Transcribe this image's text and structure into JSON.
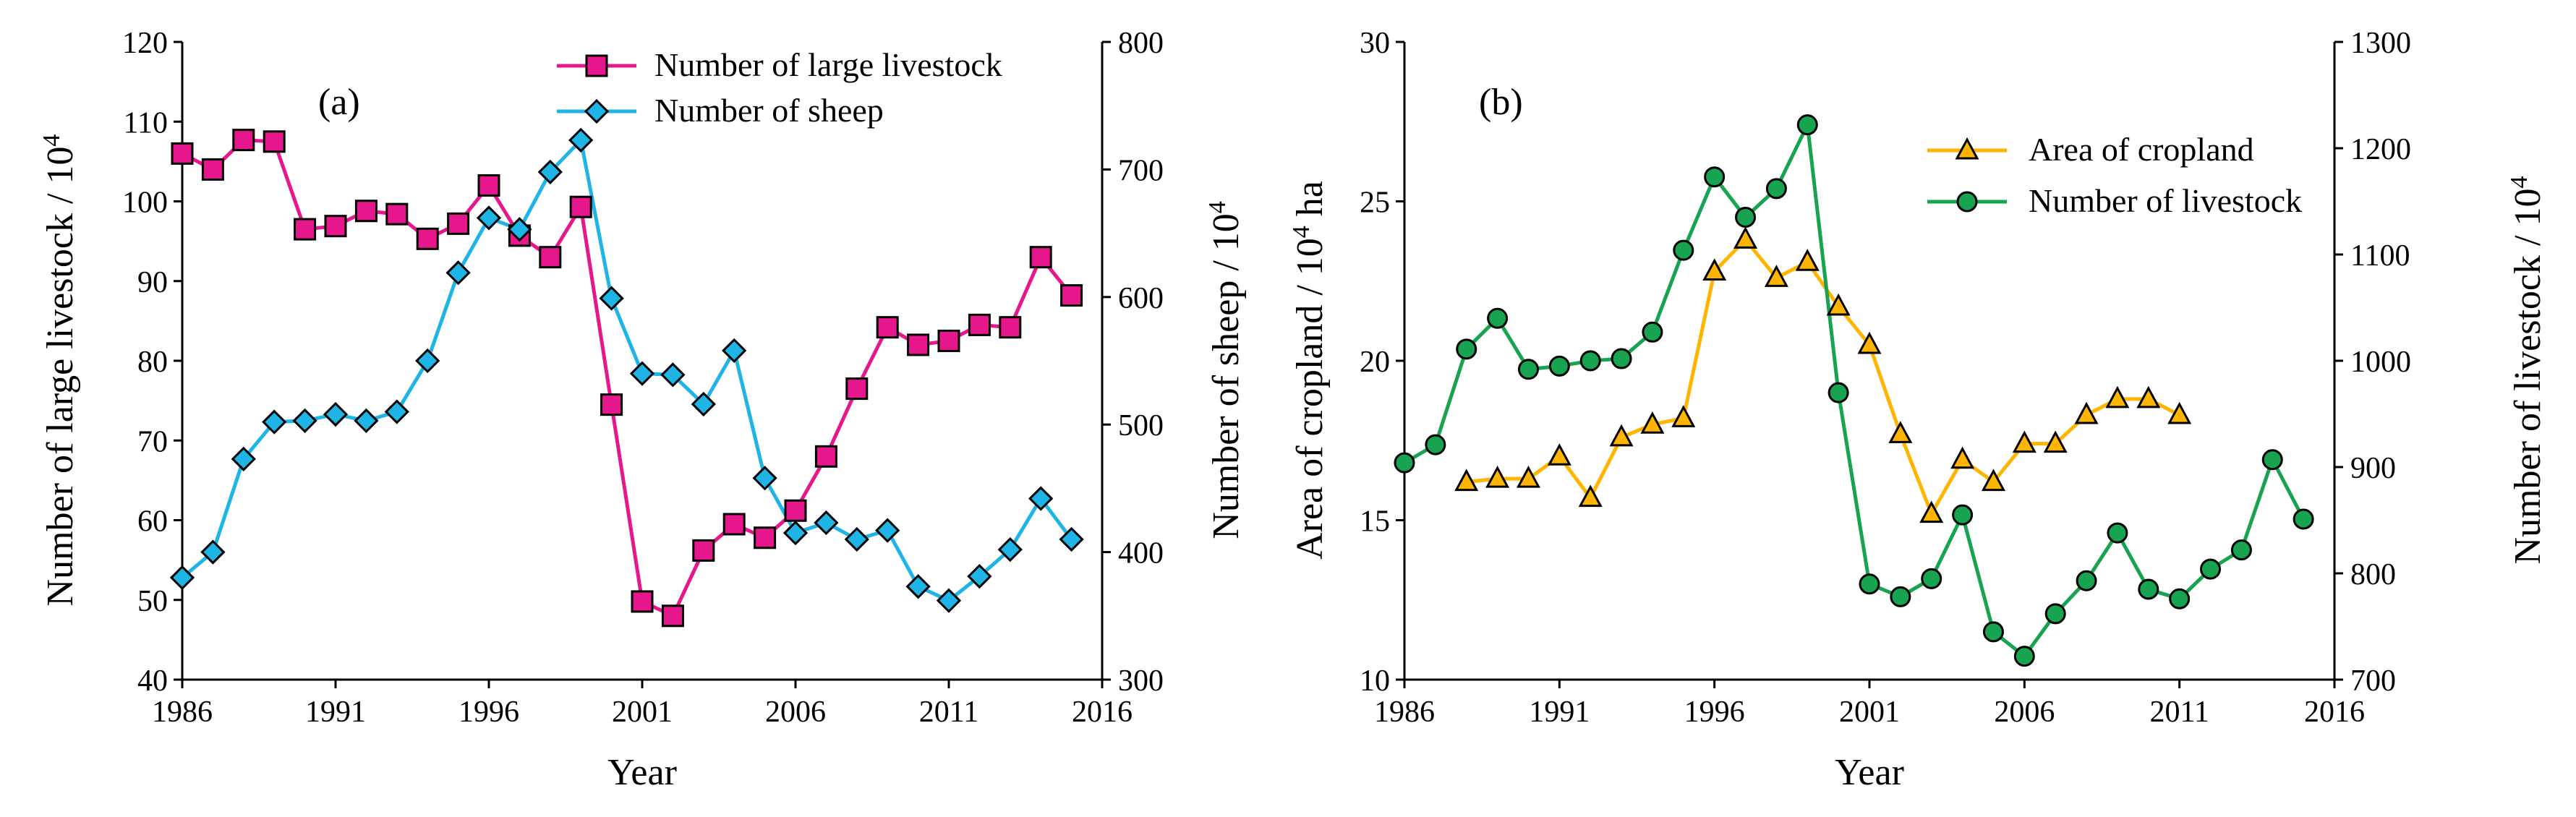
{
  "chart_data": [
    {
      "type": "line",
      "panel_label": "(a)",
      "xlabel": "Year",
      "ylabel": "Number of large livestock / 10",
      "ylabel_sup": "4",
      "y2label": "Number of sheep / 10",
      "y2label_sup": "4",
      "xlim": [
        1986,
        2016
      ],
      "ylim": [
        40,
        120
      ],
      "y2lim": [
        300,
        800
      ],
      "xticks": [
        1986,
        1991,
        1996,
        2001,
        2006,
        2011,
        2016
      ],
      "yticks": [
        40,
        50,
        60,
        70,
        80,
        90,
        100,
        110,
        120
      ],
      "y2ticks": [
        300,
        400,
        500,
        600,
        700,
        800
      ],
      "legend_position": "top-right",
      "series": [
        {
          "name": "Number of large livestock",
          "axis": "left",
          "color": "#E6178C",
          "marker": "square",
          "x": [
            1986,
            1987,
            1988,
            1989,
            1990,
            1991,
            1992,
            1993,
            1994,
            1995,
            1996,
            1997,
            1998,
            1999,
            2000,
            2001,
            2002,
            2003,
            2004,
            2005,
            2006,
            2007,
            2008,
            2009,
            2010,
            2011,
            2012,
            2013,
            2014,
            2015
          ],
          "values": [
            106,
            104,
            107.7,
            107.5,
            96.5,
            96.9,
            98.8,
            98.4,
            95.3,
            97.2,
            102,
            95.7,
            93,
            99.3,
            74.5,
            49.8,
            48,
            56.2,
            59.5,
            57.8,
            61.2,
            68,
            76.5,
            84.2,
            82,
            82.5,
            84.5,
            84.2,
            93,
            88.2
          ]
        },
        {
          "name": "Number of sheep",
          "axis": "right",
          "color": "#1EB4E6",
          "marker": "diamond",
          "x": [
            1986,
            1987,
            1988,
            1989,
            1990,
            1991,
            1992,
            1993,
            1994,
            1995,
            1996,
            1997,
            1998,
            1999,
            2000,
            2001,
            2002,
            2003,
            2004,
            2005,
            2006,
            2007,
            2008,
            2009,
            2010,
            2011,
            2012,
            2013,
            2014,
            2015
          ],
          "values": [
            380,
            400,
            473,
            502,
            503,
            508,
            503,
            510,
            550,
            619,
            662,
            653,
            698,
            723,
            599,
            540,
            539,
            516,
            558,
            458,
            415,
            423,
            410,
            417,
            373,
            362,
            381,
            402,
            442,
            410
          ]
        }
      ]
    },
    {
      "type": "line",
      "panel_label": "(b)",
      "xlabel": "Year",
      "ylabel": "Area of cropland / 10",
      "ylabel_sup": "4",
      "ylabel_unit": " ha",
      "y2label": "Number of livestock / 10",
      "y2label_sup": "4",
      "xlim": [
        1986,
        2016
      ],
      "ylim": [
        10,
        30
      ],
      "y2lim": [
        700,
        1300
      ],
      "xticks": [
        1986,
        1991,
        1996,
        2001,
        2006,
        2011,
        2016
      ],
      "yticks": [
        10,
        15,
        20,
        25,
        30
      ],
      "y2ticks": [
        700,
        800,
        900,
        1000,
        1100,
        1200,
        1300
      ],
      "legend_position": "upper-middle",
      "series": [
        {
          "name": "Area of cropland",
          "axis": "left",
          "color": "#FFB400",
          "marker": "triangle",
          "x": [
            1988,
            1989,
            1990,
            1991,
            1992,
            1993,
            1994,
            1995,
            1996,
            1997,
            1998,
            1999,
            2000,
            2001,
            2002,
            2003,
            2004,
            2005,
            2006,
            2007,
            2008,
            2009,
            2010,
            2011
          ],
          "values": [
            16.2,
            16.3,
            16.3,
            17,
            15.7,
            17.6,
            18,
            18.2,
            22.8,
            23.8,
            22.6,
            23.1,
            21.7,
            20.5,
            17.7,
            15.2,
            16.9,
            16.2,
            17.4,
            17.4,
            18.3,
            18.8,
            18.8,
            18.3
          ]
        },
        {
          "name": "Number of livestock",
          "axis": "right",
          "color": "#17A350",
          "marker": "circle",
          "x": [
            1986,
            1987,
            1988,
            1989,
            1990,
            1991,
            1992,
            1993,
            1994,
            1995,
            1996,
            1997,
            1998,
            1999,
            2000,
            2001,
            2002,
            2003,
            2004,
            2005,
            2006,
            2007,
            2008,
            2009,
            2010,
            2011,
            2012,
            2013,
            2014,
            2015
          ],
          "values": [
            904,
            921,
            1011,
            1040,
            992,
            995,
            1000,
            1002,
            1027,
            1104,
            1173,
            1135,
            1162,
            1222,
            970,
            790,
            778,
            795,
            855,
            745,
            722,
            762,
            793,
            838,
            785,
            776,
            804,
            822,
            907,
            851
          ]
        }
      ]
    }
  ]
}
